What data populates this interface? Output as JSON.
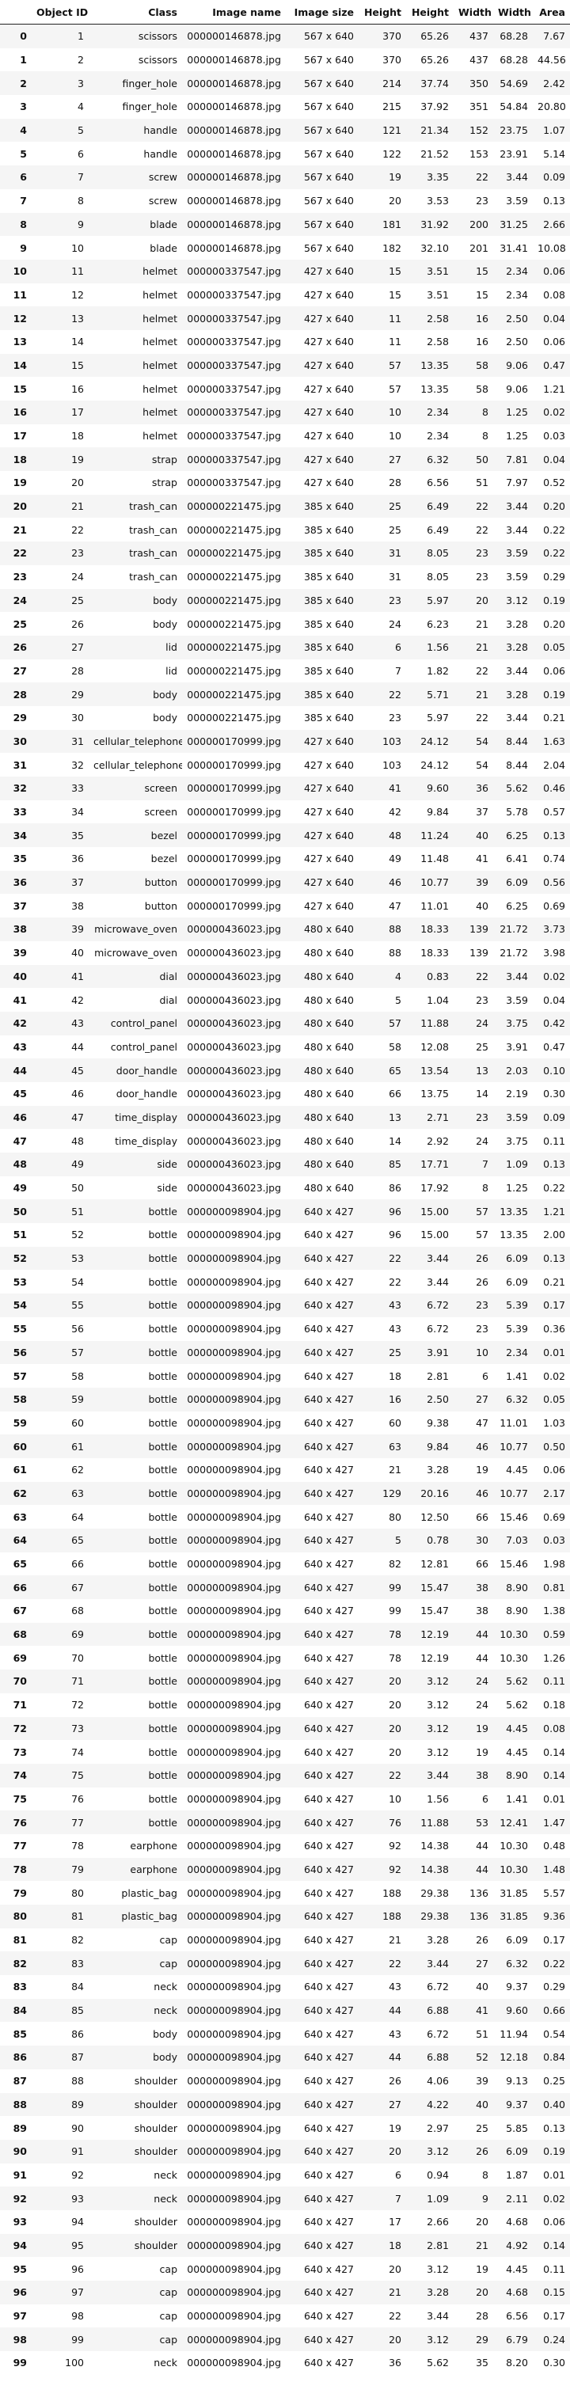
{
  "table": {
    "columns": [
      "",
      "Object ID",
      "Class",
      "Image name",
      "Image size",
      "Height",
      "Height",
      "Width",
      "Width",
      "Area"
    ],
    "rows": [
      [
        "0",
        "1",
        "scissors",
        "000000146878.jpg",
        "567 x 640",
        "370",
        "65.26",
        "437",
        "68.28",
        "7.67"
      ],
      [
        "1",
        "2",
        "scissors",
        "000000146878.jpg",
        "567 x 640",
        "370",
        "65.26",
        "437",
        "68.28",
        "44.56"
      ],
      [
        "2",
        "3",
        "finger_hole",
        "000000146878.jpg",
        "567 x 640",
        "214",
        "37.74",
        "350",
        "54.69",
        "2.42"
      ],
      [
        "3",
        "4",
        "finger_hole",
        "000000146878.jpg",
        "567 x 640",
        "215",
        "37.92",
        "351",
        "54.84",
        "20.80"
      ],
      [
        "4",
        "5",
        "handle",
        "000000146878.jpg",
        "567 x 640",
        "121",
        "21.34",
        "152",
        "23.75",
        "1.07"
      ],
      [
        "5",
        "6",
        "handle",
        "000000146878.jpg",
        "567 x 640",
        "122",
        "21.52",
        "153",
        "23.91",
        "5.14"
      ],
      [
        "6",
        "7",
        "screw",
        "000000146878.jpg",
        "567 x 640",
        "19",
        "3.35",
        "22",
        "3.44",
        "0.09"
      ],
      [
        "7",
        "8",
        "screw",
        "000000146878.jpg",
        "567 x 640",
        "20",
        "3.53",
        "23",
        "3.59",
        "0.13"
      ],
      [
        "8",
        "9",
        "blade",
        "000000146878.jpg",
        "567 x 640",
        "181",
        "31.92",
        "200",
        "31.25",
        "2.66"
      ],
      [
        "9",
        "10",
        "blade",
        "000000146878.jpg",
        "567 x 640",
        "182",
        "32.10",
        "201",
        "31.41",
        "10.08"
      ],
      [
        "10",
        "11",
        "helmet",
        "000000337547.jpg",
        "427 x 640",
        "15",
        "3.51",
        "15",
        "2.34",
        "0.06"
      ],
      [
        "11",
        "12",
        "helmet",
        "000000337547.jpg",
        "427 x 640",
        "15",
        "3.51",
        "15",
        "2.34",
        "0.08"
      ],
      [
        "12",
        "13",
        "helmet",
        "000000337547.jpg",
        "427 x 640",
        "11",
        "2.58",
        "16",
        "2.50",
        "0.04"
      ],
      [
        "13",
        "14",
        "helmet",
        "000000337547.jpg",
        "427 x 640",
        "11",
        "2.58",
        "16",
        "2.50",
        "0.06"
      ],
      [
        "14",
        "15",
        "helmet",
        "000000337547.jpg",
        "427 x 640",
        "57",
        "13.35",
        "58",
        "9.06",
        "0.47"
      ],
      [
        "15",
        "16",
        "helmet",
        "000000337547.jpg",
        "427 x 640",
        "57",
        "13.35",
        "58",
        "9.06",
        "1.21"
      ],
      [
        "16",
        "17",
        "helmet",
        "000000337547.jpg",
        "427 x 640",
        "10",
        "2.34",
        "8",
        "1.25",
        "0.02"
      ],
      [
        "17",
        "18",
        "helmet",
        "000000337547.jpg",
        "427 x 640",
        "10",
        "2.34",
        "8",
        "1.25",
        "0.03"
      ],
      [
        "18",
        "19",
        "strap",
        "000000337547.jpg",
        "427 x 640",
        "27",
        "6.32",
        "50",
        "7.81",
        "0.04"
      ],
      [
        "19",
        "20",
        "strap",
        "000000337547.jpg",
        "427 x 640",
        "28",
        "6.56",
        "51",
        "7.97",
        "0.52"
      ],
      [
        "20",
        "21",
        "trash_can",
        "000000221475.jpg",
        "385 x 640",
        "25",
        "6.49",
        "22",
        "3.44",
        "0.20"
      ],
      [
        "21",
        "22",
        "trash_can",
        "000000221475.jpg",
        "385 x 640",
        "25",
        "6.49",
        "22",
        "3.44",
        "0.22"
      ],
      [
        "22",
        "23",
        "trash_can",
        "000000221475.jpg",
        "385 x 640",
        "31",
        "8.05",
        "23",
        "3.59",
        "0.22"
      ],
      [
        "23",
        "24",
        "trash_can",
        "000000221475.jpg",
        "385 x 640",
        "31",
        "8.05",
        "23",
        "3.59",
        "0.29"
      ],
      [
        "24",
        "25",
        "body",
        "000000221475.jpg",
        "385 x 640",
        "23",
        "5.97",
        "20",
        "3.12",
        "0.19"
      ],
      [
        "25",
        "26",
        "body",
        "000000221475.jpg",
        "385 x 640",
        "24",
        "6.23",
        "21",
        "3.28",
        "0.20"
      ],
      [
        "26",
        "27",
        "lid",
        "000000221475.jpg",
        "385 x 640",
        "6",
        "1.56",
        "21",
        "3.28",
        "0.05"
      ],
      [
        "27",
        "28",
        "lid",
        "000000221475.jpg",
        "385 x 640",
        "7",
        "1.82",
        "22",
        "3.44",
        "0.06"
      ],
      [
        "28",
        "29",
        "body",
        "000000221475.jpg",
        "385 x 640",
        "22",
        "5.71",
        "21",
        "3.28",
        "0.19"
      ],
      [
        "29",
        "30",
        "body",
        "000000221475.jpg",
        "385 x 640",
        "23",
        "5.97",
        "22",
        "3.44",
        "0.21"
      ],
      [
        "30",
        "31",
        "cellular_telephone",
        "000000170999.jpg",
        "427 x 640",
        "103",
        "24.12",
        "54",
        "8.44",
        "1.63"
      ],
      [
        "31",
        "32",
        "cellular_telephone",
        "000000170999.jpg",
        "427 x 640",
        "103",
        "24.12",
        "54",
        "8.44",
        "2.04"
      ],
      [
        "32",
        "33",
        "screen",
        "000000170999.jpg",
        "427 x 640",
        "41",
        "9.60",
        "36",
        "5.62",
        "0.46"
      ],
      [
        "33",
        "34",
        "screen",
        "000000170999.jpg",
        "427 x 640",
        "42",
        "9.84",
        "37",
        "5.78",
        "0.57"
      ],
      [
        "34",
        "35",
        "bezel",
        "000000170999.jpg",
        "427 x 640",
        "48",
        "11.24",
        "40",
        "6.25",
        "0.13"
      ],
      [
        "35",
        "36",
        "bezel",
        "000000170999.jpg",
        "427 x 640",
        "49",
        "11.48",
        "41",
        "6.41",
        "0.74"
      ],
      [
        "36",
        "37",
        "button",
        "000000170999.jpg",
        "427 x 640",
        "46",
        "10.77",
        "39",
        "6.09",
        "0.56"
      ],
      [
        "37",
        "38",
        "button",
        "000000170999.jpg",
        "427 x 640",
        "47",
        "11.01",
        "40",
        "6.25",
        "0.69"
      ],
      [
        "38",
        "39",
        "microwave_oven",
        "000000436023.jpg",
        "480 x 640",
        "88",
        "18.33",
        "139",
        "21.72",
        "3.73"
      ],
      [
        "39",
        "40",
        "microwave_oven",
        "000000436023.jpg",
        "480 x 640",
        "88",
        "18.33",
        "139",
        "21.72",
        "3.98"
      ],
      [
        "40",
        "41",
        "dial",
        "000000436023.jpg",
        "480 x 640",
        "4",
        "0.83",
        "22",
        "3.44",
        "0.02"
      ],
      [
        "41",
        "42",
        "dial",
        "000000436023.jpg",
        "480 x 640",
        "5",
        "1.04",
        "23",
        "3.59",
        "0.04"
      ],
      [
        "42",
        "43",
        "control_panel",
        "000000436023.jpg",
        "480 x 640",
        "57",
        "11.88",
        "24",
        "3.75",
        "0.42"
      ],
      [
        "43",
        "44",
        "control_panel",
        "000000436023.jpg",
        "480 x 640",
        "58",
        "12.08",
        "25",
        "3.91",
        "0.47"
      ],
      [
        "44",
        "45",
        "door_handle",
        "000000436023.jpg",
        "480 x 640",
        "65",
        "13.54",
        "13",
        "2.03",
        "0.10"
      ],
      [
        "45",
        "46",
        "door_handle",
        "000000436023.jpg",
        "480 x 640",
        "66",
        "13.75",
        "14",
        "2.19",
        "0.30"
      ],
      [
        "46",
        "47",
        "time_display",
        "000000436023.jpg",
        "480 x 640",
        "13",
        "2.71",
        "23",
        "3.59",
        "0.09"
      ],
      [
        "47",
        "48",
        "time_display",
        "000000436023.jpg",
        "480 x 640",
        "14",
        "2.92",
        "24",
        "3.75",
        "0.11"
      ],
      [
        "48",
        "49",
        "side",
        "000000436023.jpg",
        "480 x 640",
        "85",
        "17.71",
        "7",
        "1.09",
        "0.13"
      ],
      [
        "49",
        "50",
        "side",
        "000000436023.jpg",
        "480 x 640",
        "86",
        "17.92",
        "8",
        "1.25",
        "0.22"
      ],
      [
        "50",
        "51",
        "bottle",
        "000000098904.jpg",
        "640 x 427",
        "96",
        "15.00",
        "57",
        "13.35",
        "1.21"
      ],
      [
        "51",
        "52",
        "bottle",
        "000000098904.jpg",
        "640 x 427",
        "96",
        "15.00",
        "57",
        "13.35",
        "2.00"
      ],
      [
        "52",
        "53",
        "bottle",
        "000000098904.jpg",
        "640 x 427",
        "22",
        "3.44",
        "26",
        "6.09",
        "0.13"
      ],
      [
        "53",
        "54",
        "bottle",
        "000000098904.jpg",
        "640 x 427",
        "22",
        "3.44",
        "26",
        "6.09",
        "0.21"
      ],
      [
        "54",
        "55",
        "bottle",
        "000000098904.jpg",
        "640 x 427",
        "43",
        "6.72",
        "23",
        "5.39",
        "0.17"
      ],
      [
        "55",
        "56",
        "bottle",
        "000000098904.jpg",
        "640 x 427",
        "43",
        "6.72",
        "23",
        "5.39",
        "0.36"
      ],
      [
        "56",
        "57",
        "bottle",
        "000000098904.jpg",
        "640 x 427",
        "25",
        "3.91",
        "10",
        "2.34",
        "0.01"
      ],
      [
        "57",
        "58",
        "bottle",
        "000000098904.jpg",
        "640 x 427",
        "18",
        "2.81",
        "6",
        "1.41",
        "0.02"
      ],
      [
        "58",
        "59",
        "bottle",
        "000000098904.jpg",
        "640 x 427",
        "16",
        "2.50",
        "27",
        "6.32",
        "0.05"
      ],
      [
        "59",
        "60",
        "bottle",
        "000000098904.jpg",
        "640 x 427",
        "60",
        "9.38",
        "47",
        "11.01",
        "1.03"
      ],
      [
        "60",
        "61",
        "bottle",
        "000000098904.jpg",
        "640 x 427",
        "63",
        "9.84",
        "46",
        "10.77",
        "0.50"
      ],
      [
        "61",
        "62",
        "bottle",
        "000000098904.jpg",
        "640 x 427",
        "21",
        "3.28",
        "19",
        "4.45",
        "0.06"
      ],
      [
        "62",
        "63",
        "bottle",
        "000000098904.jpg",
        "640 x 427",
        "129",
        "20.16",
        "46",
        "10.77",
        "2.17"
      ],
      [
        "63",
        "64",
        "bottle",
        "000000098904.jpg",
        "640 x 427",
        "80",
        "12.50",
        "66",
        "15.46",
        "0.69"
      ],
      [
        "64",
        "65",
        "bottle",
        "000000098904.jpg",
        "640 x 427",
        "5",
        "0.78",
        "30",
        "7.03",
        "0.03"
      ],
      [
        "65",
        "66",
        "bottle",
        "000000098904.jpg",
        "640 x 427",
        "82",
        "12.81",
        "66",
        "15.46",
        "1.98"
      ],
      [
        "66",
        "67",
        "bottle",
        "000000098904.jpg",
        "640 x 427",
        "99",
        "15.47",
        "38",
        "8.90",
        "0.81"
      ],
      [
        "67",
        "68",
        "bottle",
        "000000098904.jpg",
        "640 x 427",
        "99",
        "15.47",
        "38",
        "8.90",
        "1.38"
      ],
      [
        "68",
        "69",
        "bottle",
        "000000098904.jpg",
        "640 x 427",
        "78",
        "12.19",
        "44",
        "10.30",
        "0.59"
      ],
      [
        "69",
        "70",
        "bottle",
        "000000098904.jpg",
        "640 x 427",
        "78",
        "12.19",
        "44",
        "10.30",
        "1.26"
      ],
      [
        "70",
        "71",
        "bottle",
        "000000098904.jpg",
        "640 x 427",
        "20",
        "3.12",
        "24",
        "5.62",
        "0.11"
      ],
      [
        "71",
        "72",
        "bottle",
        "000000098904.jpg",
        "640 x 427",
        "20",
        "3.12",
        "24",
        "5.62",
        "0.18"
      ],
      [
        "72",
        "73",
        "bottle",
        "000000098904.jpg",
        "640 x 427",
        "20",
        "3.12",
        "19",
        "4.45",
        "0.08"
      ],
      [
        "73",
        "74",
        "bottle",
        "000000098904.jpg",
        "640 x 427",
        "20",
        "3.12",
        "19",
        "4.45",
        "0.14"
      ],
      [
        "74",
        "75",
        "bottle",
        "000000098904.jpg",
        "640 x 427",
        "22",
        "3.44",
        "38",
        "8.90",
        "0.14"
      ],
      [
        "75",
        "76",
        "bottle",
        "000000098904.jpg",
        "640 x 427",
        "10",
        "1.56",
        "6",
        "1.41",
        "0.01"
      ],
      [
        "76",
        "77",
        "bottle",
        "000000098904.jpg",
        "640 x 427",
        "76",
        "11.88",
        "53",
        "12.41",
        "1.47"
      ],
      [
        "77",
        "78",
        "earphone",
        "000000098904.jpg",
        "640 x 427",
        "92",
        "14.38",
        "44",
        "10.30",
        "0.48"
      ],
      [
        "78",
        "79",
        "earphone",
        "000000098904.jpg",
        "640 x 427",
        "92",
        "14.38",
        "44",
        "10.30",
        "1.48"
      ],
      [
        "79",
        "80",
        "plastic_bag",
        "000000098904.jpg",
        "640 x 427",
        "188",
        "29.38",
        "136",
        "31.85",
        "5.57"
      ],
      [
        "80",
        "81",
        "plastic_bag",
        "000000098904.jpg",
        "640 x 427",
        "188",
        "29.38",
        "136",
        "31.85",
        "9.36"
      ],
      [
        "81",
        "82",
        "cap",
        "000000098904.jpg",
        "640 x 427",
        "21",
        "3.28",
        "26",
        "6.09",
        "0.17"
      ],
      [
        "82",
        "83",
        "cap",
        "000000098904.jpg",
        "640 x 427",
        "22",
        "3.44",
        "27",
        "6.32",
        "0.22"
      ],
      [
        "83",
        "84",
        "neck",
        "000000098904.jpg",
        "640 x 427",
        "43",
        "6.72",
        "40",
        "9.37",
        "0.29"
      ],
      [
        "84",
        "85",
        "neck",
        "000000098904.jpg",
        "640 x 427",
        "44",
        "6.88",
        "41",
        "9.60",
        "0.66"
      ],
      [
        "85",
        "86",
        "body",
        "000000098904.jpg",
        "640 x 427",
        "43",
        "6.72",
        "51",
        "11.94",
        "0.54"
      ],
      [
        "86",
        "87",
        "body",
        "000000098904.jpg",
        "640 x 427",
        "44",
        "6.88",
        "52",
        "12.18",
        "0.84"
      ],
      [
        "87",
        "88",
        "shoulder",
        "000000098904.jpg",
        "640 x 427",
        "26",
        "4.06",
        "39",
        "9.13",
        "0.25"
      ],
      [
        "88",
        "89",
        "shoulder",
        "000000098904.jpg",
        "640 x 427",
        "27",
        "4.22",
        "40",
        "9.37",
        "0.40"
      ],
      [
        "89",
        "90",
        "shoulder",
        "000000098904.jpg",
        "640 x 427",
        "19",
        "2.97",
        "25",
        "5.85",
        "0.13"
      ],
      [
        "90",
        "91",
        "shoulder",
        "000000098904.jpg",
        "640 x 427",
        "20",
        "3.12",
        "26",
        "6.09",
        "0.19"
      ],
      [
        "91",
        "92",
        "neck",
        "000000098904.jpg",
        "640 x 427",
        "6",
        "0.94",
        "8",
        "1.87",
        "0.01"
      ],
      [
        "92",
        "93",
        "neck",
        "000000098904.jpg",
        "640 x 427",
        "7",
        "1.09",
        "9",
        "2.11",
        "0.02"
      ],
      [
        "93",
        "94",
        "shoulder",
        "000000098904.jpg",
        "640 x 427",
        "17",
        "2.66",
        "20",
        "4.68",
        "0.06"
      ],
      [
        "94",
        "95",
        "shoulder",
        "000000098904.jpg",
        "640 x 427",
        "18",
        "2.81",
        "21",
        "4.92",
        "0.14"
      ],
      [
        "95",
        "96",
        "cap",
        "000000098904.jpg",
        "640 x 427",
        "20",
        "3.12",
        "19",
        "4.45",
        "0.11"
      ],
      [
        "96",
        "97",
        "cap",
        "000000098904.jpg",
        "640 x 427",
        "21",
        "3.28",
        "20",
        "4.68",
        "0.15"
      ],
      [
        "97",
        "98",
        "cap",
        "000000098904.jpg",
        "640 x 427",
        "22",
        "3.44",
        "28",
        "6.56",
        "0.17"
      ],
      [
        "98",
        "99",
        "cap",
        "000000098904.jpg",
        "640 x 427",
        "20",
        "3.12",
        "29",
        "6.79",
        "0.24"
      ],
      [
        "99",
        "100",
        "neck",
        "000000098904.jpg",
        "640 x 427",
        "36",
        "5.62",
        "35",
        "8.20",
        "0.30"
      ]
    ]
  }
}
